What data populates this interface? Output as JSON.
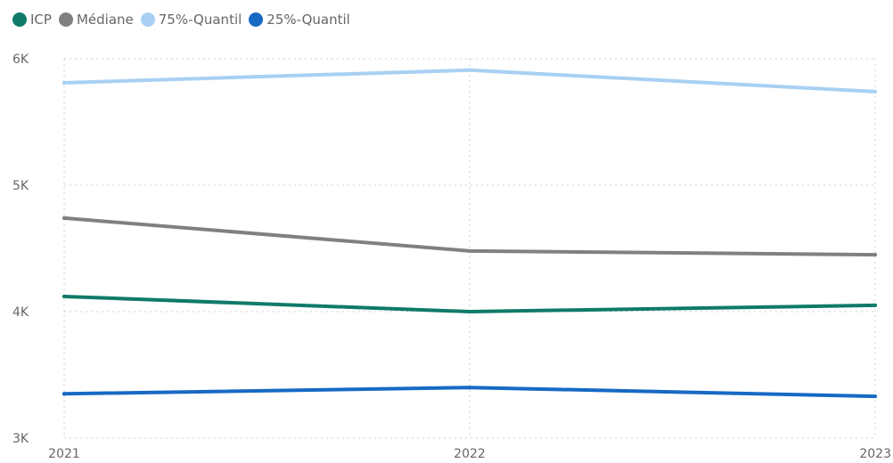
{
  "chart_data": {
    "type": "line",
    "title": "",
    "xlabel": "",
    "ylabel": "",
    "categories": [
      "2021",
      "2022",
      "2023"
    ],
    "y_ticks": [
      3000,
      4000,
      5000,
      6000
    ],
    "y_tick_labels": [
      "3K",
      "4K",
      "5K",
      "6K"
    ],
    "ylim": [
      3000,
      6000
    ],
    "grid": true,
    "legend_position": "top-left",
    "series": [
      {
        "name": "ICP",
        "color": "#0f7a68",
        "values": [
          4120,
          4000,
          4050
        ]
      },
      {
        "name": "Médiane",
        "color": "#808080",
        "values": [
          4740,
          4480,
          4450
        ]
      },
      {
        "name": "75%-Quantil",
        "color": "#a8d0f2",
        "values": [
          5810,
          5910,
          5740
        ]
      },
      {
        "name": "25%-Quantil",
        "color": "#1769c4",
        "values": [
          3350,
          3400,
          3330
        ]
      }
    ]
  }
}
